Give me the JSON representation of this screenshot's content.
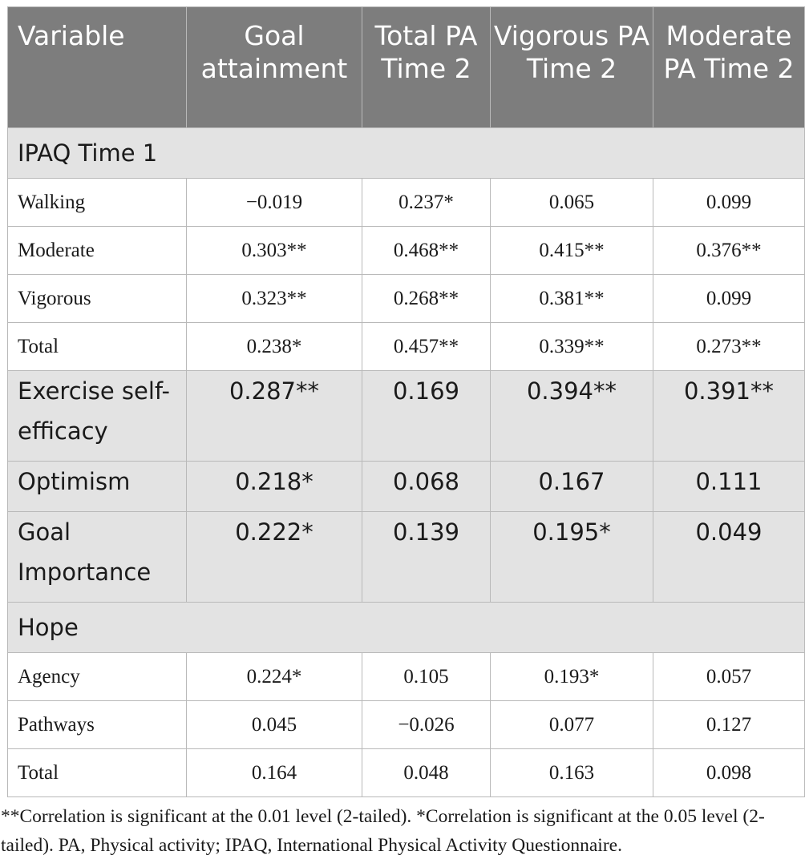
{
  "table": {
    "headers": [
      "Variable",
      "Goal attainment",
      "Total PA Time 2",
      "Vigorous PA Time 2",
      "Moderate PA Time 2"
    ],
    "sections": [
      {
        "title": "IPAQ Time 1",
        "rows": [
          {
            "label": "Walking",
            "values": [
              "−0.019",
              "0.237*",
              "0.065",
              "0.099"
            ]
          },
          {
            "label": "Moderate",
            "values": [
              "0.303**",
              "0.468**",
              "0.415**",
              "0.376**"
            ]
          },
          {
            "label": "Vigorous",
            "values": [
              "0.323**",
              "0.268**",
              "0.381**",
              "0.099"
            ]
          },
          {
            "label": "Total",
            "values": [
              "0.238*",
              "0.457**",
              "0.339**",
              "0.273**"
            ]
          }
        ]
      }
    ],
    "main_rows": [
      {
        "label": "Exercise self-efficacy",
        "values": [
          "0.287**",
          "0.169",
          "0.394**",
          "0.391**"
        ]
      },
      {
        "label": "Optimism",
        "values": [
          "0.218*",
          "0.068",
          "0.167",
          "0.111"
        ]
      },
      {
        "label": "Goal Importance",
        "values": [
          "0.222*",
          "0.139",
          "0.195*",
          "0.049"
        ]
      }
    ],
    "hope": {
      "title": "Hope",
      "rows": [
        {
          "label": "Agency",
          "values": [
            "0.224*",
            "0.105",
            "0.193*",
            "0.057"
          ]
        },
        {
          "label": "Pathways",
          "values": [
            "0.045",
            "−0.026",
            "0.077",
            "0.127"
          ]
        },
        {
          "label": "Total",
          "values": [
            "0.164",
            "0.048",
            "0.163",
            "0.098"
          ]
        }
      ]
    }
  },
  "footnote": "**Correlation is significant at the 0.01 level (2-tailed). *Correlation is significant at the 0.05 level (2-tailed). PA, Physical activity; IPAQ, International Physical Activity Questionnaire."
}
